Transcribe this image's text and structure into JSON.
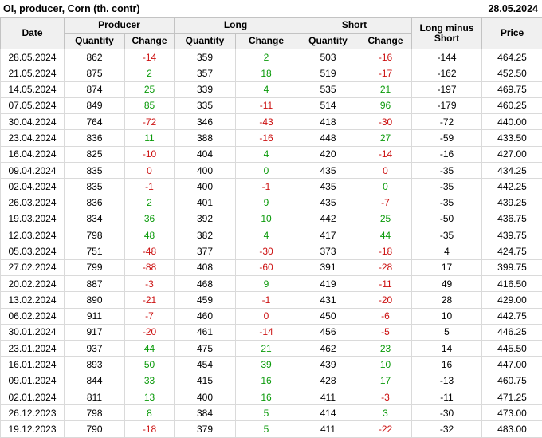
{
  "title": "OI, producer, Corn (th. contr)",
  "report_date": "28.05.2024",
  "table": {
    "header": {
      "date": "Date",
      "producer": "Producer",
      "long": "Long",
      "short": "Short",
      "long_minus_short": "Long minus Short",
      "price": "Price",
      "quantity": "Quantity",
      "change": "Change"
    },
    "colors": {
      "pos": "#0a9a0a",
      "neg": "#cc1111",
      "header_bg": "#f0f0f0"
    },
    "rows": [
      {
        "date": "28.05.2024",
        "producer": {
          "qty": "862",
          "chg": "-14",
          "chg_color": "neg"
        },
        "long": {
          "qty": "359",
          "chg": "2",
          "chg_color": "pos"
        },
        "short": {
          "qty": "503",
          "chg": "-16",
          "chg_color": "neg"
        },
        "long_minus_short": "-144",
        "price": "464.25"
      },
      {
        "date": "21.05.2024",
        "producer": {
          "qty": "875",
          "chg": "2",
          "chg_color": "pos"
        },
        "long": {
          "qty": "357",
          "chg": "18",
          "chg_color": "pos"
        },
        "short": {
          "qty": "519",
          "chg": "-17",
          "chg_color": "neg"
        },
        "long_minus_short": "-162",
        "price": "452.50"
      },
      {
        "date": "14.05.2024",
        "producer": {
          "qty": "874",
          "chg": "25",
          "chg_color": "pos"
        },
        "long": {
          "qty": "339",
          "chg": "4",
          "chg_color": "pos"
        },
        "short": {
          "qty": "535",
          "chg": "21",
          "chg_color": "pos"
        },
        "long_minus_short": "-197",
        "price": "469.75"
      },
      {
        "date": "07.05.2024",
        "producer": {
          "qty": "849",
          "chg": "85",
          "chg_color": "pos"
        },
        "long": {
          "qty": "335",
          "chg": "-11",
          "chg_color": "neg"
        },
        "short": {
          "qty": "514",
          "chg": "96",
          "chg_color": "pos"
        },
        "long_minus_short": "-179",
        "price": "460.25"
      },
      {
        "date": "30.04.2024",
        "producer": {
          "qty": "764",
          "chg": "-72",
          "chg_color": "neg"
        },
        "long": {
          "qty": "346",
          "chg": "-43",
          "chg_color": "neg"
        },
        "short": {
          "qty": "418",
          "chg": "-30",
          "chg_color": "neg"
        },
        "long_minus_short": "-72",
        "price": "440.00"
      },
      {
        "date": "23.04.2024",
        "producer": {
          "qty": "836",
          "chg": "11",
          "chg_color": "pos"
        },
        "long": {
          "qty": "388",
          "chg": "-16",
          "chg_color": "neg"
        },
        "short": {
          "qty": "448",
          "chg": "27",
          "chg_color": "pos"
        },
        "long_minus_short": "-59",
        "price": "433.50"
      },
      {
        "date": "16.04.2024",
        "producer": {
          "qty": "825",
          "chg": "-10",
          "chg_color": "neg"
        },
        "long": {
          "qty": "404",
          "chg": "4",
          "chg_color": "pos"
        },
        "short": {
          "qty": "420",
          "chg": "-14",
          "chg_color": "neg"
        },
        "long_minus_short": "-16",
        "price": "427.00"
      },
      {
        "date": "09.04.2024",
        "producer": {
          "qty": "835",
          "chg": "0",
          "chg_color": "neg"
        },
        "long": {
          "qty": "400",
          "chg": "0",
          "chg_color": "pos"
        },
        "short": {
          "qty": "435",
          "chg": "0",
          "chg_color": "neg"
        },
        "long_minus_short": "-35",
        "price": "434.25"
      },
      {
        "date": "02.04.2024",
        "producer": {
          "qty": "835",
          "chg": "-1",
          "chg_color": "neg"
        },
        "long": {
          "qty": "400",
          "chg": "-1",
          "chg_color": "neg"
        },
        "short": {
          "qty": "435",
          "chg": "0",
          "chg_color": "pos"
        },
        "long_minus_short": "-35",
        "price": "442.25"
      },
      {
        "date": "26.03.2024",
        "producer": {
          "qty": "836",
          "chg": "2",
          "chg_color": "pos"
        },
        "long": {
          "qty": "401",
          "chg": "9",
          "chg_color": "pos"
        },
        "short": {
          "qty": "435",
          "chg": "-7",
          "chg_color": "neg"
        },
        "long_minus_short": "-35",
        "price": "439.25"
      },
      {
        "date": "19.03.2024",
        "producer": {
          "qty": "834",
          "chg": "36",
          "chg_color": "pos"
        },
        "long": {
          "qty": "392",
          "chg": "10",
          "chg_color": "pos"
        },
        "short": {
          "qty": "442",
          "chg": "25",
          "chg_color": "pos"
        },
        "long_minus_short": "-50",
        "price": "436.75"
      },
      {
        "date": "12.03.2024",
        "producer": {
          "qty": "798",
          "chg": "48",
          "chg_color": "pos"
        },
        "long": {
          "qty": "382",
          "chg": "4",
          "chg_color": "pos"
        },
        "short": {
          "qty": "417",
          "chg": "44",
          "chg_color": "pos"
        },
        "long_minus_short": "-35",
        "price": "439.75"
      },
      {
        "date": "05.03.2024",
        "producer": {
          "qty": "751",
          "chg": "-48",
          "chg_color": "neg"
        },
        "long": {
          "qty": "377",
          "chg": "-30",
          "chg_color": "neg"
        },
        "short": {
          "qty": "373",
          "chg": "-18",
          "chg_color": "neg"
        },
        "long_minus_short": "4",
        "price": "424.75"
      },
      {
        "date": "27.02.2024",
        "producer": {
          "qty": "799",
          "chg": "-88",
          "chg_color": "neg"
        },
        "long": {
          "qty": "408",
          "chg": "-60",
          "chg_color": "neg"
        },
        "short": {
          "qty": "391",
          "chg": "-28",
          "chg_color": "neg"
        },
        "long_minus_short": "17",
        "price": "399.75"
      },
      {
        "date": "20.02.2024",
        "producer": {
          "qty": "887",
          "chg": "-3",
          "chg_color": "neg"
        },
        "long": {
          "qty": "468",
          "chg": "9",
          "chg_color": "pos"
        },
        "short": {
          "qty": "419",
          "chg": "-11",
          "chg_color": "neg"
        },
        "long_minus_short": "49",
        "price": "416.50"
      },
      {
        "date": "13.02.2024",
        "producer": {
          "qty": "890",
          "chg": "-21",
          "chg_color": "neg"
        },
        "long": {
          "qty": "459",
          "chg": "-1",
          "chg_color": "neg"
        },
        "short": {
          "qty": "431",
          "chg": "-20",
          "chg_color": "neg"
        },
        "long_minus_short": "28",
        "price": "429.00"
      },
      {
        "date": "06.02.2024",
        "producer": {
          "qty": "911",
          "chg": "-7",
          "chg_color": "neg"
        },
        "long": {
          "qty": "460",
          "chg": "0",
          "chg_color": "neg"
        },
        "short": {
          "qty": "450",
          "chg": "-6",
          "chg_color": "neg"
        },
        "long_minus_short": "10",
        "price": "442.75"
      },
      {
        "date": "30.01.2024",
        "producer": {
          "qty": "917",
          "chg": "-20",
          "chg_color": "neg"
        },
        "long": {
          "qty": "461",
          "chg": "-14",
          "chg_color": "neg"
        },
        "short": {
          "qty": "456",
          "chg": "-5",
          "chg_color": "neg"
        },
        "long_minus_short": "5",
        "price": "446.25"
      },
      {
        "date": "23.01.2024",
        "producer": {
          "qty": "937",
          "chg": "44",
          "chg_color": "pos"
        },
        "long": {
          "qty": "475",
          "chg": "21",
          "chg_color": "pos"
        },
        "short": {
          "qty": "462",
          "chg": "23",
          "chg_color": "pos"
        },
        "long_minus_short": "14",
        "price": "445.50"
      },
      {
        "date": "16.01.2024",
        "producer": {
          "qty": "893",
          "chg": "50",
          "chg_color": "pos"
        },
        "long": {
          "qty": "454",
          "chg": "39",
          "chg_color": "pos"
        },
        "short": {
          "qty": "439",
          "chg": "10",
          "chg_color": "pos"
        },
        "long_minus_short": "16",
        "price": "447.00"
      },
      {
        "date": "09.01.2024",
        "producer": {
          "qty": "844",
          "chg": "33",
          "chg_color": "pos"
        },
        "long": {
          "qty": "415",
          "chg": "16",
          "chg_color": "pos"
        },
        "short": {
          "qty": "428",
          "chg": "17",
          "chg_color": "pos"
        },
        "long_minus_short": "-13",
        "price": "460.75"
      },
      {
        "date": "02.01.2024",
        "producer": {
          "qty": "811",
          "chg": "13",
          "chg_color": "pos"
        },
        "long": {
          "qty": "400",
          "chg": "16",
          "chg_color": "pos"
        },
        "short": {
          "qty": "411",
          "chg": "-3",
          "chg_color": "neg"
        },
        "long_minus_short": "-11",
        "price": "471.25"
      },
      {
        "date": "26.12.2023",
        "producer": {
          "qty": "798",
          "chg": "8",
          "chg_color": "pos"
        },
        "long": {
          "qty": "384",
          "chg": "5",
          "chg_color": "pos"
        },
        "short": {
          "qty": "414",
          "chg": "3",
          "chg_color": "pos"
        },
        "long_minus_short": "-30",
        "price": "473.00"
      },
      {
        "date": "19.12.2023",
        "producer": {
          "qty": "790",
          "chg": "-18",
          "chg_color": "neg"
        },
        "long": {
          "qty": "379",
          "chg": "5",
          "chg_color": "pos"
        },
        "short": {
          "qty": "411",
          "chg": "-22",
          "chg_color": "neg"
        },
        "long_minus_short": "-32",
        "price": "483.00"
      }
    ]
  }
}
